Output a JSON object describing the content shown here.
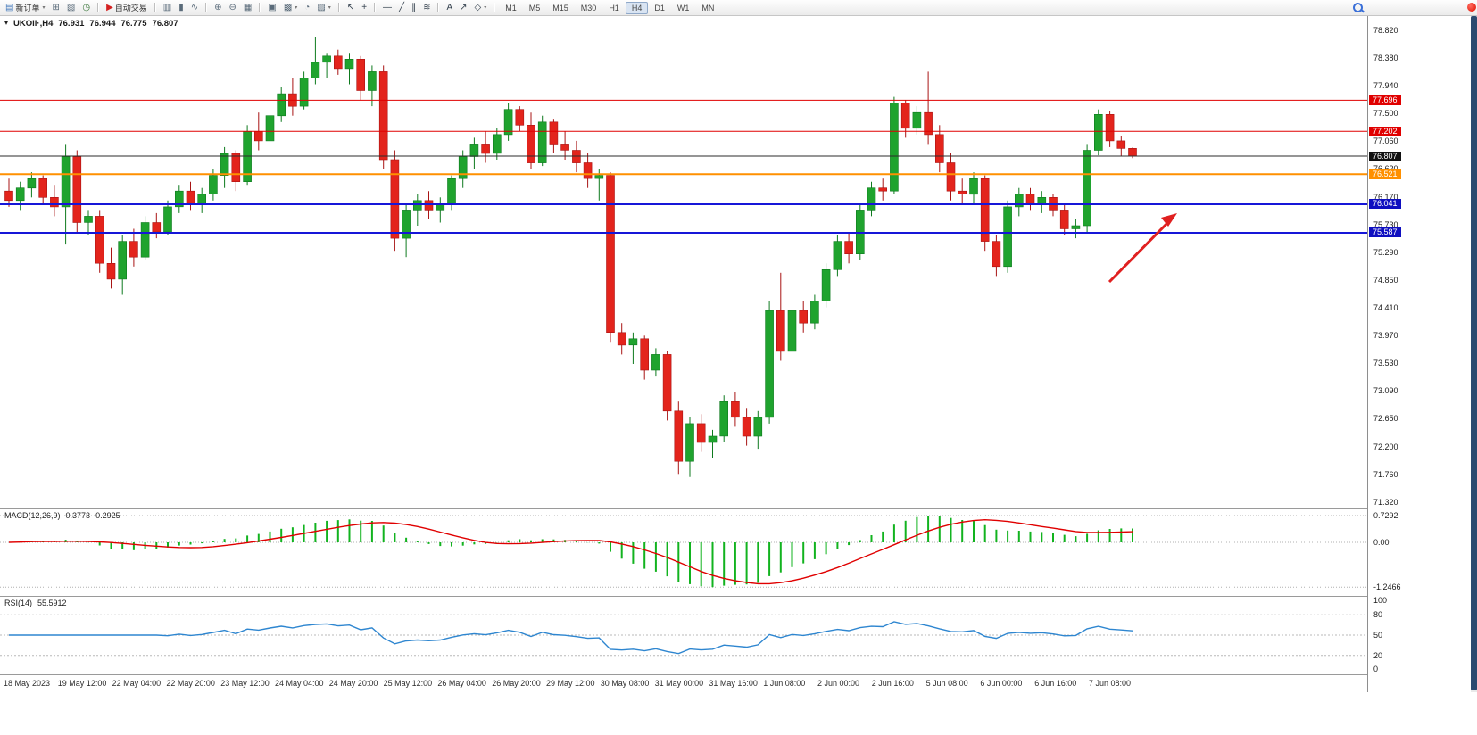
{
  "toolbar": {
    "groups": [
      {
        "items": [
          {
            "name": "new-order-button",
            "icon_name": "new-order-icon",
            "glyph": "▤",
            "glyph_color": "#4a7dbd",
            "label": "新订单",
            "arrow": true
          },
          {
            "name": "chart-window-button",
            "icon_name": "chart-window-icon",
            "glyph": "⊞",
            "glyph_color": "#5a6b7a"
          },
          {
            "name": "profiles-button",
            "icon_name": "profiles-icon",
            "glyph": "▧",
            "glyph_color": "#5a6b7a"
          },
          {
            "name": "alerts-button",
            "icon_name": "alert-clock-icon",
            "glyph": "◷",
            "glyph_color": "#3f7a3f"
          }
        ]
      },
      {
        "items": [
          {
            "name": "autotrading-button",
            "icon_name": "autotrading-icon",
            "glyph": "▶",
            "glyph_color": "#d42020",
            "label": "自动交易"
          }
        ]
      },
      {
        "items": [
          {
            "name": "bars-mode-button",
            "icon_name": "bar-chart-icon",
            "glyph": "▥",
            "glyph_color": "#5a6b7a"
          },
          {
            "name": "candles-mode-button",
            "icon_name": "candlestick-icon",
            "glyph": "▮",
            "glyph_color": "#5a6b7a"
          },
          {
            "name": "line-mode-button",
            "icon_name": "line-chart-icon",
            "glyph": "∿",
            "glyph_color": "#5a6b7a"
          }
        ]
      },
      {
        "items": [
          {
            "name": "zoom-in-button",
            "icon_name": "zoom-in-icon",
            "glyph": "⊕",
            "glyph_color": "#5a6b7a"
          },
          {
            "name": "zoom-out-button",
            "icon_name": "zoom-out-icon",
            "glyph": "⊖",
            "glyph_color": "#5a6b7a"
          },
          {
            "name": "grid-button",
            "icon_name": "grid-icon",
            "glyph": "▦",
            "glyph_color": "#5a6b7a"
          }
        ]
      },
      {
        "items": [
          {
            "name": "tile-windows-button",
            "icon_name": "tile-windows-icon",
            "glyph": "▣",
            "glyph_color": "#5a6b7a"
          },
          {
            "name": "cascade-windows-button",
            "icon_name": "cascade-windows-icon",
            "glyph": "▩",
            "glyph_color": "#5a6b7a",
            "arrow": true
          },
          {
            "name": "alarm-button",
            "icon_name": "clock-icon",
            "glyph": "◔",
            "glyph_color": "#5a6b7a"
          },
          {
            "name": "snapshot-button",
            "icon_name": "camera-icon",
            "glyph": "▨",
            "glyph_color": "#5a6b7a",
            "arrow": true
          }
        ]
      },
      {
        "items": [
          {
            "name": "cursor-tool-button",
            "icon_name": "cursor-icon",
            "glyph": "↖",
            "glyph_color": "#33404d"
          },
          {
            "name": "crosshair-tool-button",
            "icon_name": "crosshair-icon",
            "glyph": "+",
            "glyph_color": "#33404d"
          }
        ]
      },
      {
        "items": [
          {
            "name": "hline-tool-button",
            "icon_name": "horizontal-line-icon",
            "glyph": "—",
            "glyph_color": "#33404d"
          },
          {
            "name": "trendline-tool-button",
            "icon_name": "trendline-icon",
            "glyph": "╱",
            "glyph_color": "#33404d"
          },
          {
            "name": "channel-tool-button",
            "icon_name": "channel-icon",
            "glyph": "∥",
            "glyph_color": "#33404d"
          },
          {
            "name": "fibonacci-tool-button",
            "icon_name": "fibonacci-icon",
            "glyph": "≋",
            "glyph_color": "#33404d"
          }
        ]
      },
      {
        "items": [
          {
            "name": "text-tool-button",
            "icon_name": "text-icon",
            "glyph": "A",
            "glyph_color": "#33404d"
          },
          {
            "name": "arrow-tool-button",
            "icon_name": "arrow-tool-icon",
            "glyph": "↗",
            "glyph_color": "#33404d"
          },
          {
            "name": "shapes-tool-button",
            "icon_name": "shapes-icon",
            "glyph": "◇",
            "glyph_color": "#33404d",
            "arrow": true
          }
        ]
      },
      {
        "items": [
          {
            "name": "tf-m1-button",
            "label": "M1",
            "tf": true
          },
          {
            "name": "tf-m5-button",
            "label": "M5",
            "tf": true
          },
          {
            "name": "tf-m15-button",
            "label": "M15",
            "tf": true
          },
          {
            "name": "tf-m30-button",
            "label": "M30",
            "tf": true
          },
          {
            "name": "tf-h1-button",
            "label": "H1",
            "tf": true
          },
          {
            "name": "tf-h4-button",
            "label": "H4",
            "tf": true,
            "active": true
          },
          {
            "name": "tf-d1-button",
            "label": "D1",
            "tf": true
          },
          {
            "name": "tf-w1-button",
            "label": "W1",
            "tf": true
          },
          {
            "name": "tf-mn-button",
            "label": "MN",
            "tf": true
          }
        ]
      }
    ]
  },
  "chart": {
    "title": {
      "symbol": "UKOil·,H4",
      "open": "76.931",
      "high": "76.944",
      "low": "76.775",
      "close": "76.807"
    },
    "arrow_color": "#e02020"
  },
  "indicators": {
    "macd": {
      "name": "MACD(12,26,9)",
      "value_main": "0.3773",
      "value_signal": "0.2925",
      "axis_max": "0.7292",
      "axis_zero": "0.00",
      "axis_min": "-1.2466",
      "histogram_color": "#12b31f",
      "signal_color": "#e00000"
    },
    "rsi": {
      "name": "RSI(14)",
      "value": "55.5912",
      "axis_top": "100",
      "axis_bottom": "0",
      "levels": [
        "80",
        "50",
        "20"
      ],
      "line_color": "#2e86d0"
    }
  },
  "chart_data": {
    "type": "candlestick",
    "symbol": "UKOil",
    "timeframe": "H4",
    "title": "UKOil·,H4 76.931 76.944 76.775 76.807",
    "bull_color": "#1fa32e",
    "bear_color": "#e3241c",
    "y_axis_labels": [
      "78.820",
      "78.380",
      "77.940",
      "77.500",
      "77.060",
      "76.620",
      "76.170",
      "75.730",
      "75.290",
      "74.850",
      "74.410",
      "73.970",
      "73.530",
      "73.090",
      "72.650",
      "72.200",
      "71.760",
      "71.320"
    ],
    "x_axis_labels": [
      "18 May 2023",
      "19 May 12:00",
      "22 May 04:00",
      "22 May 20:00",
      "23 May 12:00",
      "24 May 04:00",
      "24 May 20:00",
      "25 May 12:00",
      "26 May 04:00",
      "26 May 20:00",
      "29 May 12:00",
      "30 May 08:00",
      "31 May 00:00",
      "31 May 16:00",
      "1 Jun 08:00",
      "2 Jun 00:00",
      "2 Jun 16:00",
      "5 Jun 08:00",
      "6 Jun 00:00",
      "6 Jun 16:00",
      "7 Jun 08:00"
    ],
    "y_range": [
      71.2,
      79.05
    ],
    "hlines": [
      {
        "label": "77.696",
        "price": 77.696,
        "color": "#e00000",
        "width": 1
      },
      {
        "label": "77.202",
        "price": 77.202,
        "color": "#e00000",
        "width": 1
      },
      {
        "label": "76.807",
        "price": 76.807,
        "color": "#2b2b2b",
        "width": 1,
        "tag_color": "#111111",
        "current": true
      },
      {
        "label": "76.521",
        "price": 76.521,
        "color": "#ff9000",
        "width": 2,
        "tag_color": "#ff9000"
      },
      {
        "label": "76.041",
        "price": 76.041,
        "color": "#1616d8",
        "width": 2,
        "tag_color": "#0f0fc0"
      },
      {
        "label": "75.587",
        "price": 75.587,
        "color": "#1616d8",
        "width": 2,
        "tag_color": "#0f0fc0"
      }
    ],
    "ohlc": [
      [
        76.25,
        76.45,
        76.0,
        76.1
      ],
      [
        76.1,
        76.4,
        75.95,
        76.3
      ],
      [
        76.3,
        76.55,
        76.15,
        76.45
      ],
      [
        76.45,
        76.5,
        76.05,
        76.15
      ],
      [
        76.15,
        76.35,
        75.85,
        76.0
      ],
      [
        76.0,
        77.0,
        75.4,
        76.8
      ],
      [
        76.8,
        76.9,
        75.6,
        75.75
      ],
      [
        75.75,
        75.95,
        75.55,
        75.85
      ],
      [
        75.85,
        75.95,
        74.95,
        75.1
      ],
      [
        75.1,
        75.35,
        74.7,
        74.85
      ],
      [
        74.85,
        75.55,
        74.6,
        75.45
      ],
      [
        75.45,
        75.65,
        75.05,
        75.2
      ],
      [
        75.2,
        75.85,
        75.15,
        75.75
      ],
      [
        75.75,
        75.9,
        75.5,
        75.6
      ],
      [
        75.6,
        76.1,
        75.55,
        76.0
      ],
      [
        76.0,
        76.35,
        75.9,
        76.25
      ],
      [
        76.25,
        76.4,
        75.95,
        76.05
      ],
      [
        76.05,
        76.3,
        75.9,
        76.2
      ],
      [
        76.2,
        76.6,
        76.1,
        76.5
      ],
      [
        76.5,
        76.95,
        76.3,
        76.85
      ],
      [
        76.85,
        76.9,
        76.25,
        76.4
      ],
      [
        76.4,
        77.3,
        76.35,
        77.2
      ],
      [
        77.2,
        77.5,
        76.9,
        77.05
      ],
      [
        77.05,
        77.5,
        77.0,
        77.45
      ],
      [
        77.45,
        77.9,
        77.35,
        77.8
      ],
      [
        77.8,
        78.05,
        77.45,
        77.6
      ],
      [
        77.6,
        78.15,
        77.55,
        78.05
      ],
      [
        78.05,
        78.7,
        77.95,
        78.3
      ],
      [
        78.3,
        78.45,
        78.05,
        78.4
      ],
      [
        78.4,
        78.5,
        78.1,
        78.2
      ],
      [
        78.2,
        78.45,
        77.95,
        78.35
      ],
      [
        78.35,
        78.4,
        77.7,
        77.85
      ],
      [
        77.85,
        78.25,
        77.6,
        78.15
      ],
      [
        78.15,
        78.25,
        76.6,
        76.75
      ],
      [
        76.75,
        76.9,
        75.3,
        75.5
      ],
      [
        75.5,
        76.05,
        75.2,
        75.95
      ],
      [
        75.95,
        76.2,
        75.7,
        76.1
      ],
      [
        76.1,
        76.25,
        75.8,
        75.95
      ],
      [
        75.95,
        76.15,
        75.75,
        76.05
      ],
      [
        76.05,
        76.5,
        75.95,
        76.45
      ],
      [
        76.45,
        76.9,
        76.3,
        76.8
      ],
      [
        76.8,
        77.1,
        76.6,
        77.0
      ],
      [
        77.0,
        77.2,
        76.7,
        76.85
      ],
      [
        76.85,
        77.25,
        76.75,
        77.15
      ],
      [
        77.15,
        77.65,
        77.05,
        77.55
      ],
      [
        77.55,
        77.6,
        77.2,
        77.3
      ],
      [
        77.3,
        77.5,
        76.6,
        76.7
      ],
      [
        76.7,
        77.45,
        76.65,
        77.35
      ],
      [
        77.35,
        77.4,
        76.85,
        77.0
      ],
      [
        77.0,
        77.2,
        76.75,
        76.9
      ],
      [
        76.9,
        77.05,
        76.55,
        76.7
      ],
      [
        76.7,
        76.85,
        76.3,
        76.45
      ],
      [
        76.45,
        76.6,
        76.1,
        76.5
      ],
      [
        76.5,
        76.55,
        73.85,
        74.0
      ],
      [
        74.0,
        74.15,
        73.65,
        73.8
      ],
      [
        73.8,
        74.0,
        73.5,
        73.9
      ],
      [
        73.9,
        73.95,
        73.25,
        73.4
      ],
      [
        73.4,
        73.75,
        73.3,
        73.65
      ],
      [
        73.65,
        73.7,
        72.6,
        72.75
      ],
      [
        72.75,
        72.9,
        71.75,
        71.95
      ],
      [
        71.95,
        72.65,
        71.7,
        72.55
      ],
      [
        72.55,
        72.7,
        72.1,
        72.25
      ],
      [
        72.25,
        72.45,
        72.0,
        72.35
      ],
      [
        72.35,
        73.0,
        72.25,
        72.9
      ],
      [
        72.9,
        73.05,
        72.5,
        72.65
      ],
      [
        72.65,
        72.8,
        72.2,
        72.35
      ],
      [
        72.35,
        72.75,
        72.15,
        72.65
      ],
      [
        72.65,
        74.5,
        72.55,
        74.35
      ],
      [
        74.35,
        74.95,
        73.55,
        73.7
      ],
      [
        73.7,
        74.45,
        73.6,
        74.35
      ],
      [
        74.35,
        74.5,
        74.0,
        74.15
      ],
      [
        74.15,
        74.6,
        74.05,
        74.5
      ],
      [
        74.5,
        75.1,
        74.4,
        75.0
      ],
      [
        75.0,
        75.55,
        74.9,
        75.45
      ],
      [
        75.45,
        75.6,
        75.1,
        75.25
      ],
      [
        75.25,
        76.05,
        75.15,
        75.95
      ],
      [
        75.95,
        76.4,
        75.85,
        76.3
      ],
      [
        76.3,
        76.45,
        76.1,
        76.25
      ],
      [
        76.25,
        77.75,
        76.2,
        77.65
      ],
      [
        77.65,
        77.7,
        77.1,
        77.25
      ],
      [
        77.25,
        77.6,
        77.15,
        77.5
      ],
      [
        77.5,
        78.15,
        77.0,
        77.15
      ],
      [
        77.15,
        77.3,
        76.55,
        76.7
      ],
      [
        76.7,
        76.85,
        76.1,
        76.25
      ],
      [
        76.25,
        76.45,
        76.05,
        76.2
      ],
      [
        76.2,
        76.55,
        76.05,
        76.45
      ],
      [
        76.45,
        76.5,
        75.3,
        75.45
      ],
      [
        75.45,
        75.55,
        74.9,
        75.05
      ],
      [
        75.05,
        76.1,
        74.95,
        76.0
      ],
      [
        76.0,
        76.3,
        75.85,
        76.2
      ],
      [
        76.2,
        76.3,
        75.95,
        76.05
      ],
      [
        76.05,
        76.25,
        75.9,
        76.15
      ],
      [
        76.15,
        76.2,
        75.85,
        75.95
      ],
      [
        75.95,
        76.05,
        75.55,
        75.65
      ],
      [
        75.65,
        75.8,
        75.5,
        75.7
      ],
      [
        75.7,
        77.0,
        75.58,
        76.9
      ],
      [
        76.9,
        77.55,
        76.82,
        77.47
      ],
      [
        77.47,
        77.52,
        76.95,
        77.05
      ],
      [
        77.05,
        77.12,
        76.8,
        76.93
      ],
      [
        76.931,
        76.944,
        76.775,
        76.807
      ]
    ],
    "indicators": [
      {
        "type": "MACD",
        "params": "12,26,9",
        "values": [
          0.3773,
          0.2925
        ],
        "axis_range": [
          -1.2466,
          0.7292
        ]
      },
      {
        "type": "RSI",
        "params": "14",
        "value": 55.5912,
        "levels": [
          0,
          20,
          50,
          80,
          100
        ]
      }
    ],
    "annotation": {
      "type": "arrow",
      "direction": "up-right",
      "color": "#e02020"
    }
  }
}
